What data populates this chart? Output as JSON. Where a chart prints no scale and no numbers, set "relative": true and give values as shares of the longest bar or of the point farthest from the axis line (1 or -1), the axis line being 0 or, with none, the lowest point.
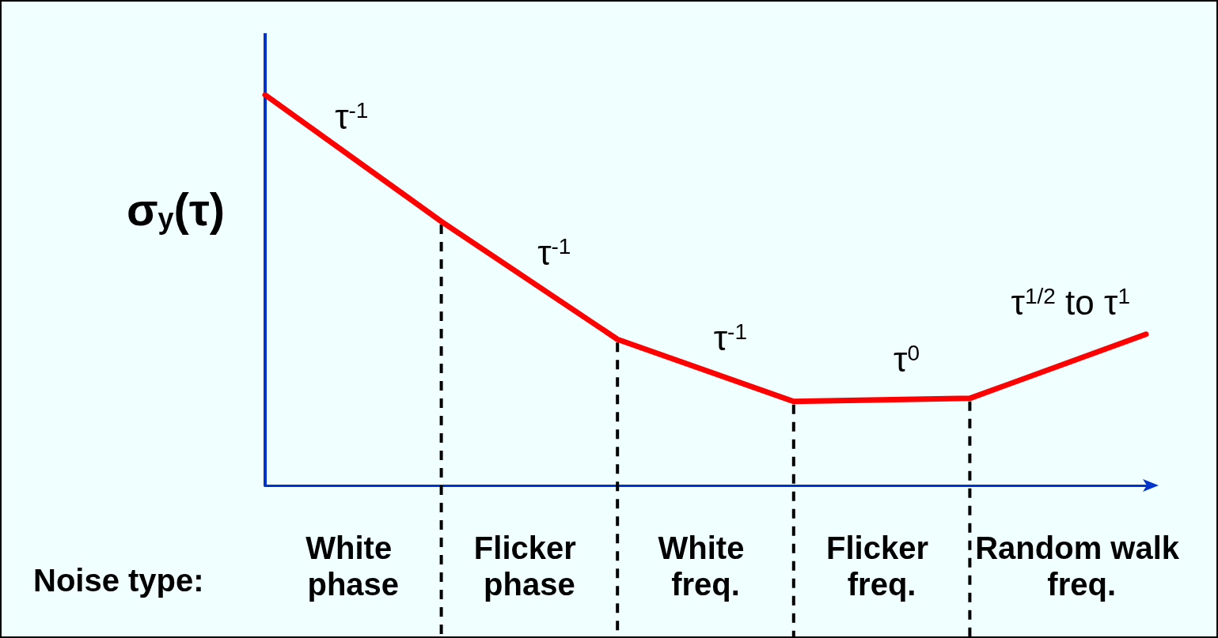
{
  "chart_data": {
    "type": "line",
    "relative": true,
    "ylabel": "σ$_{y}$(τ)",
    "categories": [
      null,
      null,
      null,
      null,
      null,
      null
    ],
    "values": [
      1,
      0.676,
      0.374,
      0.215,
      0.223,
      0.387
    ],
    "color": "#ff0000",
    "annotations": [
      "τ$^{-1}$",
      "τ$^{-1}$",
      "τ$^{-1}$",
      "τ$^{0}$",
      "τ$^{1/2}$ to τ$^{1}$",
      "White phase",
      "Flicker phase",
      "White freq.",
      "Flicker freq.",
      "Random walk freq.",
      "Noise type:"
    ]
  }
}
